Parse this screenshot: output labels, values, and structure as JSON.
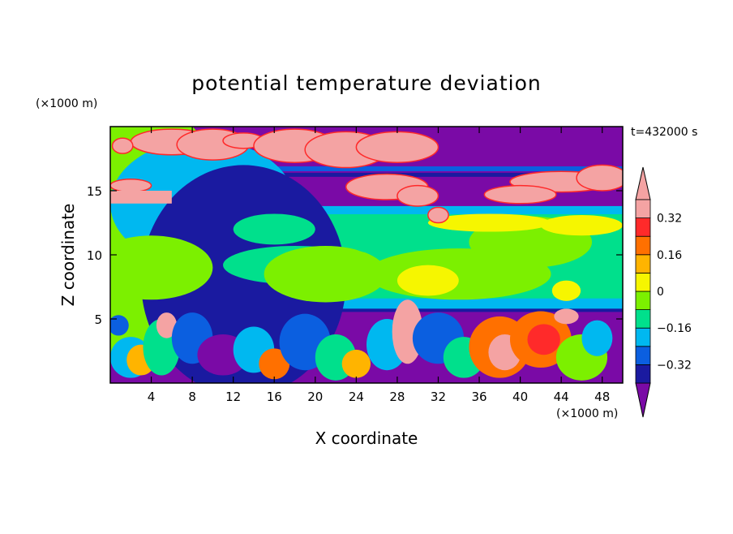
{
  "chart_data": {
    "type": "heatmap",
    "title": "potential temperature deviation",
    "xlabel": "X coordinate",
    "ylabel": "Z coordinate",
    "x_multiplier": "(×1000 m)",
    "y_multiplier": "(×1000 m)",
    "time_label": "t=432000 s",
    "xlim": [
      0,
      50
    ],
    "ylim": [
      0,
      20
    ],
    "x_ticks": [
      4,
      8,
      12,
      16,
      20,
      24,
      28,
      32,
      36,
      40,
      44,
      48
    ],
    "y_ticks": [
      5,
      10,
      15
    ],
    "colorbar": {
      "levels": [
        -0.4,
        -0.32,
        -0.24,
        -0.16,
        -0.08,
        0,
        0.08,
        0.16,
        0.24,
        0.32,
        0.4
      ],
      "tick_labels": [
        "0.32",
        "0.16",
        "0",
        "−0.16",
        "−0.32"
      ],
      "tick_values": [
        0.32,
        0.16,
        0,
        -0.16,
        -0.32
      ],
      "colors": [
        "#7a0aa6",
        "#1a1aa0",
        "#0b5fe0",
        "#00b8f0",
        "#00e08c",
        "#7cf000",
        "#f6f600",
        "#ffb400",
        "#ff7000",
        "#ff2a2a",
        "#f4a3a3"
      ],
      "extend": "both"
    },
    "layers": [
      {
        "z_from": 0,
        "z_to": 5.5,
        "description_value": -0.36
      },
      {
        "z_from": 5.5,
        "z_to": 13.8,
        "description_value": 0.0
      },
      {
        "z_from": 13.8,
        "z_to": 20,
        "description_value": -0.44
      }
    ],
    "grid": false,
    "legend": "right"
  }
}
